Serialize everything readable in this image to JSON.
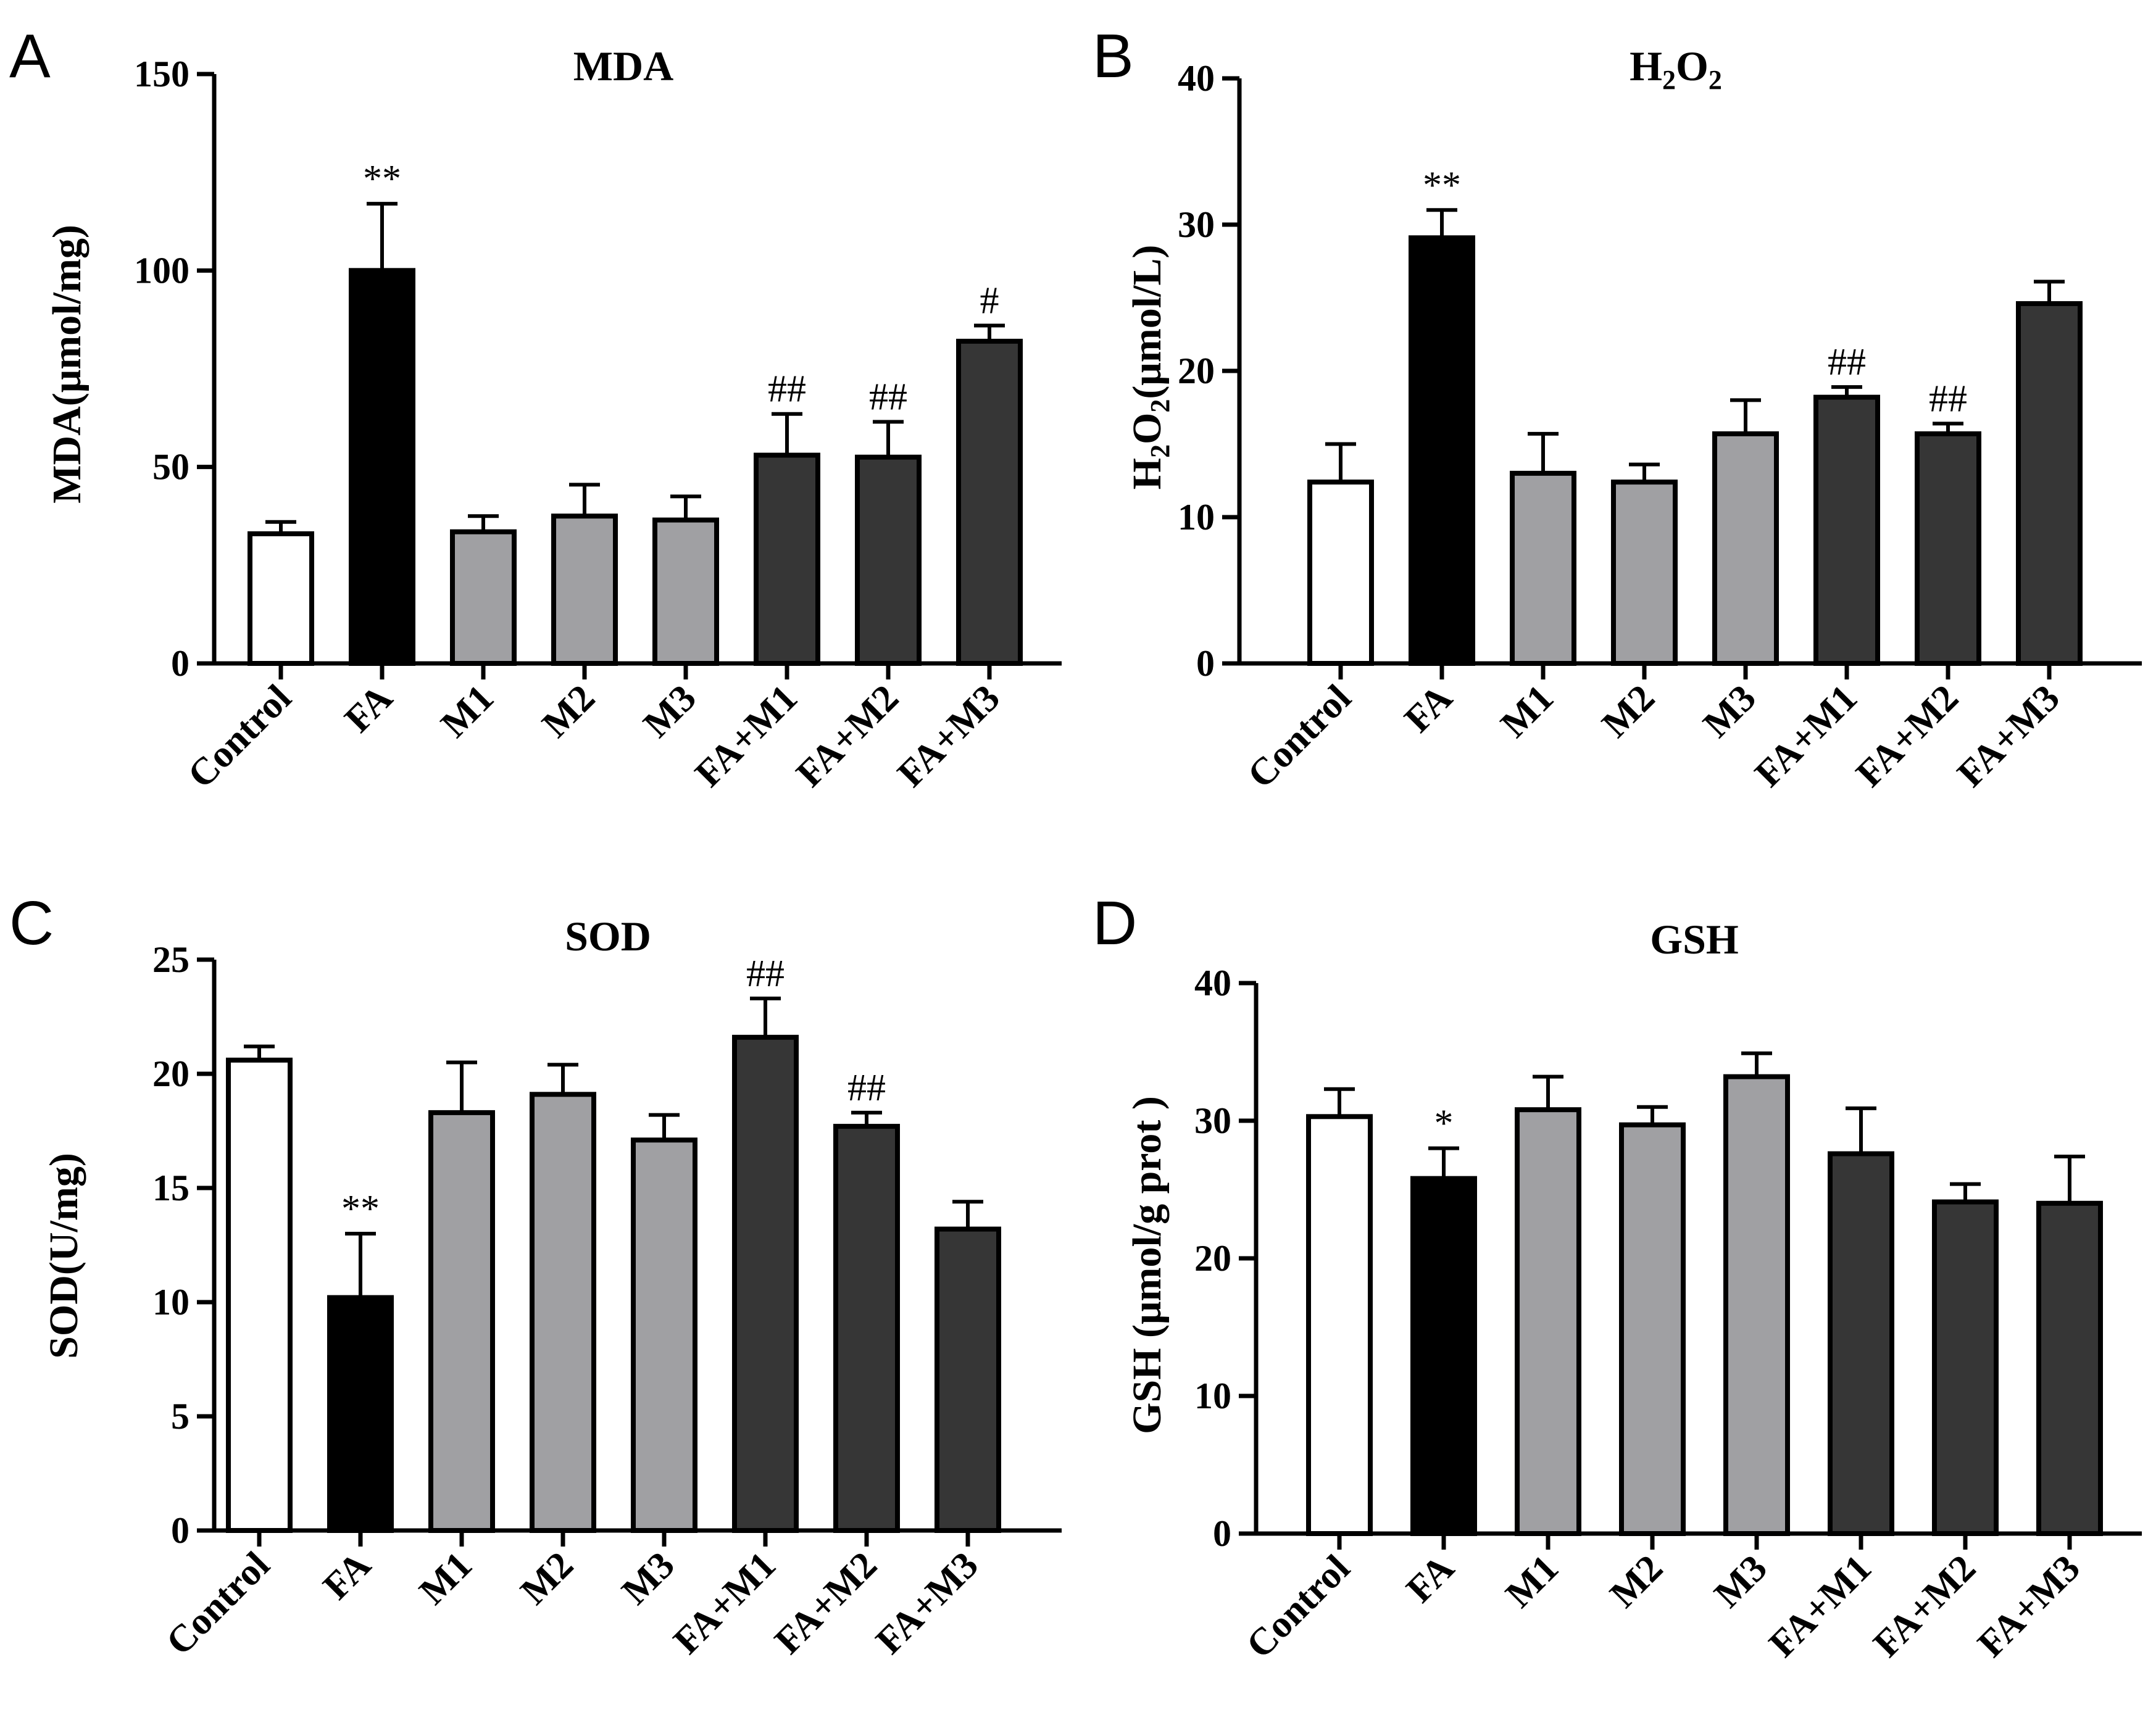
{
  "figure": {
    "colors": {
      "Control": "#ffffff",
      "FA": "#000000",
      "M": "#a0a0a3",
      "FA+M": "#363636",
      "stroke": "#000000"
    }
  },
  "chart_data": [
    {
      "panel": "A",
      "type": "bar",
      "title": "MDA",
      "ylabel": "MDA(μmol/mg)",
      "ylim": [
        0,
        150
      ],
      "yticks": [
        0,
        50,
        100,
        150
      ],
      "yticklabels": [
        "0",
        "50",
        "100",
        "150"
      ],
      "categories": [
        "Control",
        "FA",
        "M1",
        "M2",
        "M3",
        "FA+M1",
        "FA+M2",
        "FA+M3"
      ],
      "values": [
        33,
        100,
        33.5,
        37.5,
        36.5,
        53,
        52.5,
        82
      ],
      "errors": [
        3,
        17,
        4,
        8,
        6,
        10.5,
        9,
        4
      ],
      "annotations": [
        "",
        "**",
        "",
        "",
        "",
        "##",
        "##",
        "#"
      ]
    },
    {
      "panel": "B",
      "type": "bar",
      "title": "H2O2",
      "title_main": "H",
      "title_sub1": "2",
      "title_mid": "O",
      "title_sub2": "2",
      "ylabel": "H2O2(μmol/L)",
      "ylabel_main": "H",
      "ylabel_sub1": "2",
      "ylabel_mid": "O",
      "ylabel_sub2": "2",
      "ylabel_tail": "(μmol/L)",
      "ylim": [
        0,
        40
      ],
      "yticks": [
        0,
        10,
        20,
        30,
        40
      ],
      "yticklabels": [
        "0",
        "10",
        "20",
        "30",
        "40"
      ],
      "categories": [
        "Control",
        "FA",
        "M1",
        "M2",
        "M3",
        "FA+M1",
        "FA+M2",
        "FA+M3"
      ],
      "values": [
        12.4,
        29.1,
        13,
        12.4,
        15.7,
        18.2,
        15.7,
        24.6
      ],
      "errors": [
        2.6,
        1.9,
        2.7,
        1.2,
        2.3,
        0.7,
        0.7,
        1.5
      ],
      "annotations": [
        "",
        "**",
        "",
        "",
        "",
        "##",
        "##",
        ""
      ]
    },
    {
      "panel": "C",
      "type": "bar",
      "title": "SOD",
      "ylabel": "SOD(U/mg)",
      "ylim": [
        0,
        25
      ],
      "yticks": [
        0,
        5,
        10,
        15,
        20,
        25
      ],
      "yticklabels": [
        "0",
        "5",
        "10",
        "15",
        "20",
        "25"
      ],
      "categories": [
        "Control",
        "FA",
        "M1",
        "M2",
        "M3",
        "FA+M1",
        "FA+M2",
        "FA+M3"
      ],
      "values": [
        20.6,
        10.2,
        18.3,
        19.1,
        17.1,
        21.6,
        17.7,
        13.2
      ],
      "errors": [
        0.6,
        2.8,
        2.2,
        1.3,
        1.1,
        1.7,
        0.6,
        1.2
      ],
      "annotations": [
        "",
        "**",
        "",
        "",
        "",
        "##",
        "##",
        ""
      ]
    },
    {
      "panel": "D",
      "type": "bar",
      "title": "GSH",
      "ylabel": "GSH (μmol/g prot )",
      "ylim": [
        0,
        40
      ],
      "yticks": [
        0,
        10,
        20,
        30,
        40
      ],
      "yticklabels": [
        "0",
        "10",
        "20",
        "30",
        "40"
      ],
      "categories": [
        "Control",
        "FA",
        "M1",
        "M2",
        "M3",
        "FA+M1",
        "FA+M2",
        "FA+M3"
      ],
      "values": [
        30.3,
        25.8,
        30.8,
        29.7,
        33.2,
        27.6,
        24.1,
        24
      ],
      "errors": [
        2,
        2.2,
        2.4,
        1.3,
        1.7,
        3.3,
        1.3,
        3.4
      ],
      "annotations": [
        "",
        "*",
        "",
        "",
        "",
        "",
        "",
        ""
      ]
    }
  ]
}
